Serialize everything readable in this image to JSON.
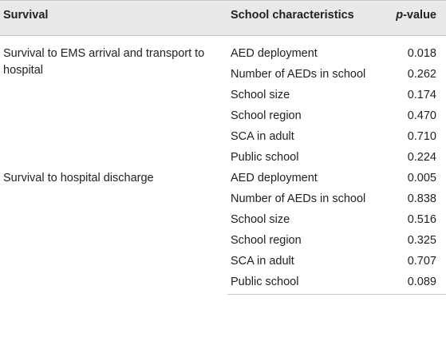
{
  "header": {
    "col1": "Survival",
    "col2": "School characteristics",
    "col3_italic": "p",
    "col3_rest": "-value"
  },
  "groups": [
    {
      "survival": "Survival to EMS arrival and transport to hospital",
      "rows": [
        {
          "characteristic": "AED deployment",
          "p": "0.018"
        },
        {
          "characteristic": "Number of AEDs in school",
          "p": "0.262"
        },
        {
          "characteristic": "School size",
          "p": "0.174"
        },
        {
          "characteristic": "School region",
          "p": "0.470"
        },
        {
          "characteristic": "SCA in adult",
          "p": "0.710"
        },
        {
          "characteristic": "Public school",
          "p": "0.224"
        }
      ]
    },
    {
      "survival": "Survival to hospital discharge",
      "rows": [
        {
          "characteristic": "AED deployment",
          "p": "0.005"
        },
        {
          "characteristic": "Number of AEDs in school",
          "p": "0.838"
        },
        {
          "characteristic": "School size",
          "p": "0.516"
        },
        {
          "characteristic": "School region",
          "p": "0.325"
        },
        {
          "characteristic": "SCA in adult",
          "p": "0.707"
        },
        {
          "characteristic": "Public school",
          "p": "0.089"
        }
      ]
    }
  ]
}
